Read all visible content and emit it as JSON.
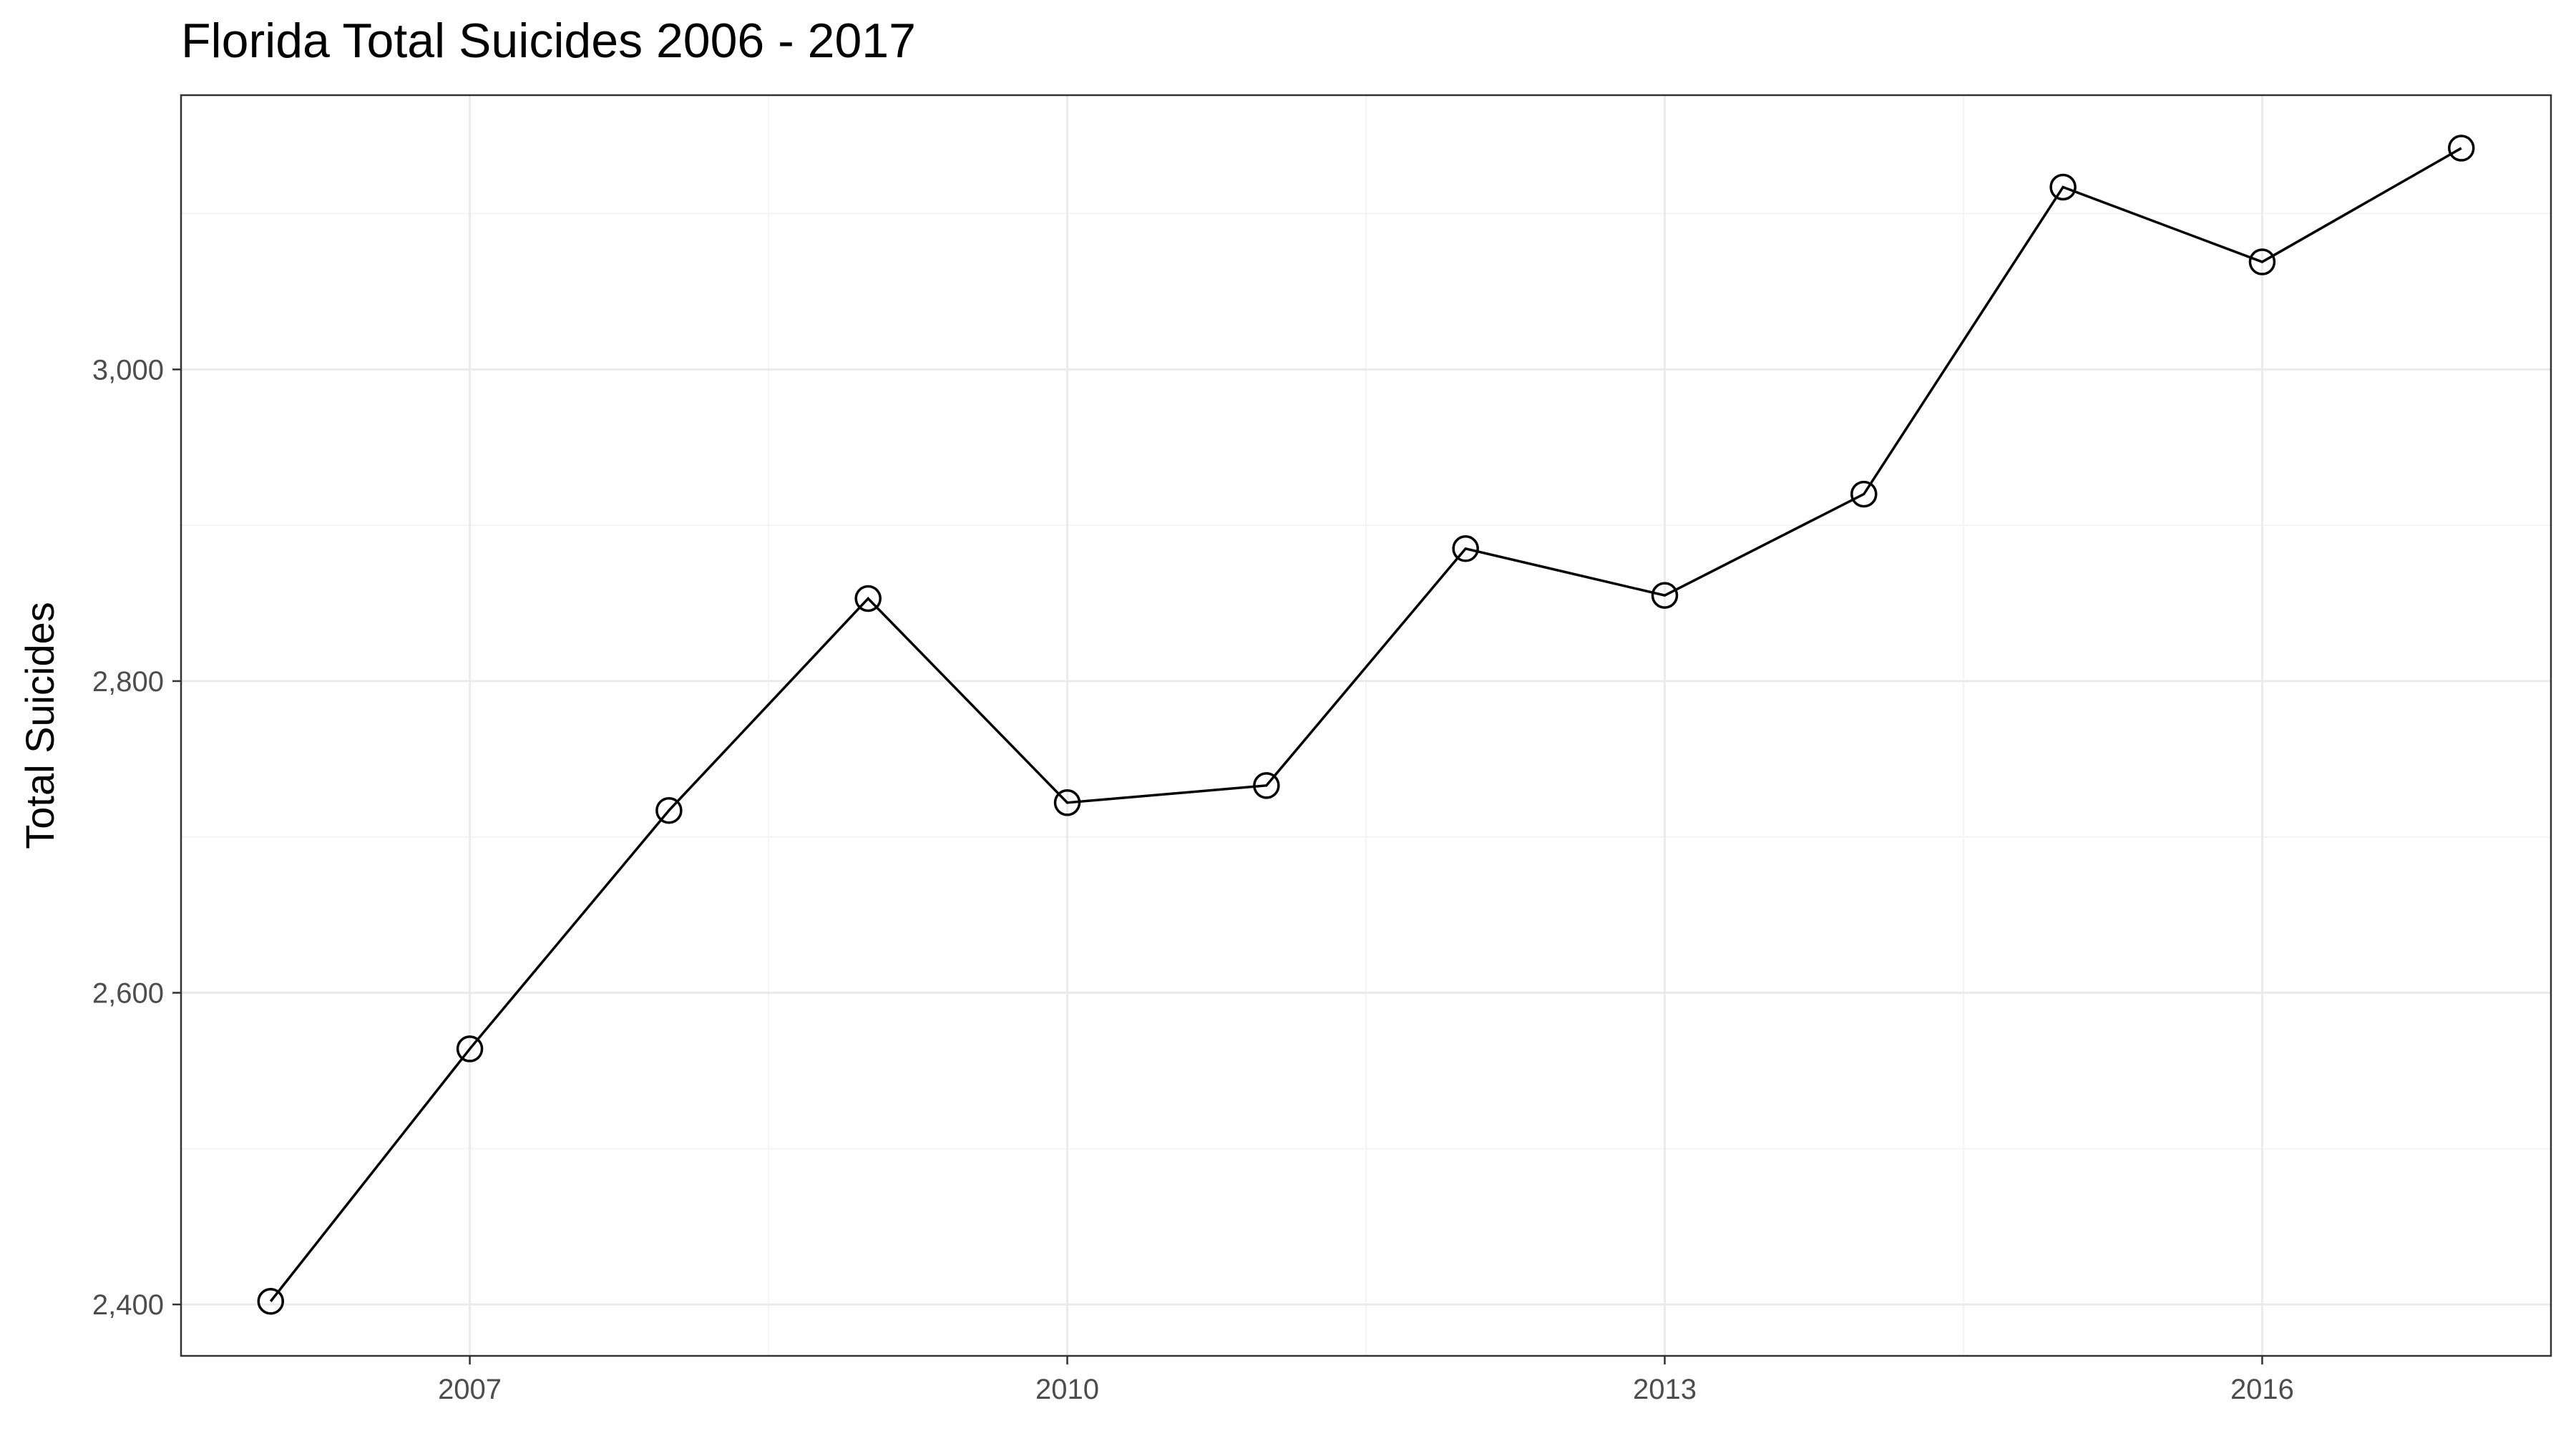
{
  "chart_data": {
    "type": "line",
    "title": "Florida Total Suicides 2006 - 2017",
    "xlabel": "",
    "ylabel": "Total Suicides",
    "xlim": [
      2005.55,
      2017.45
    ],
    "ylim": [
      2367,
      3176
    ],
    "x_ticks": [
      2007,
      2010,
      2013,
      2016
    ],
    "x_tick_labels": [
      "2007",
      "2010",
      "2013",
      "2016"
    ],
    "x_minor_ticks": [
      2008.5,
      2011.5,
      2014.5
    ],
    "y_ticks": [
      2400,
      2600,
      2800,
      3000
    ],
    "y_tick_labels": [
      "2,400",
      "2,600",
      "2,800",
      "3,000"
    ],
    "y_minor_ticks": [
      2500,
      2700,
      2900,
      3100
    ],
    "grid": true,
    "legend": "none",
    "marker": "open-circle",
    "series": [
      {
        "x": [
          2006,
          2007,
          2008,
          2009,
          2010,
          2011,
          2012,
          2013,
          2014,
          2015,
          2016,
          2017
        ],
        "values": [
          2402,
          2564,
          2717,
          2853,
          2722,
          2733,
          2885,
          2855,
          2920,
          3117,
          3069,
          3142
        ]
      }
    ]
  }
}
